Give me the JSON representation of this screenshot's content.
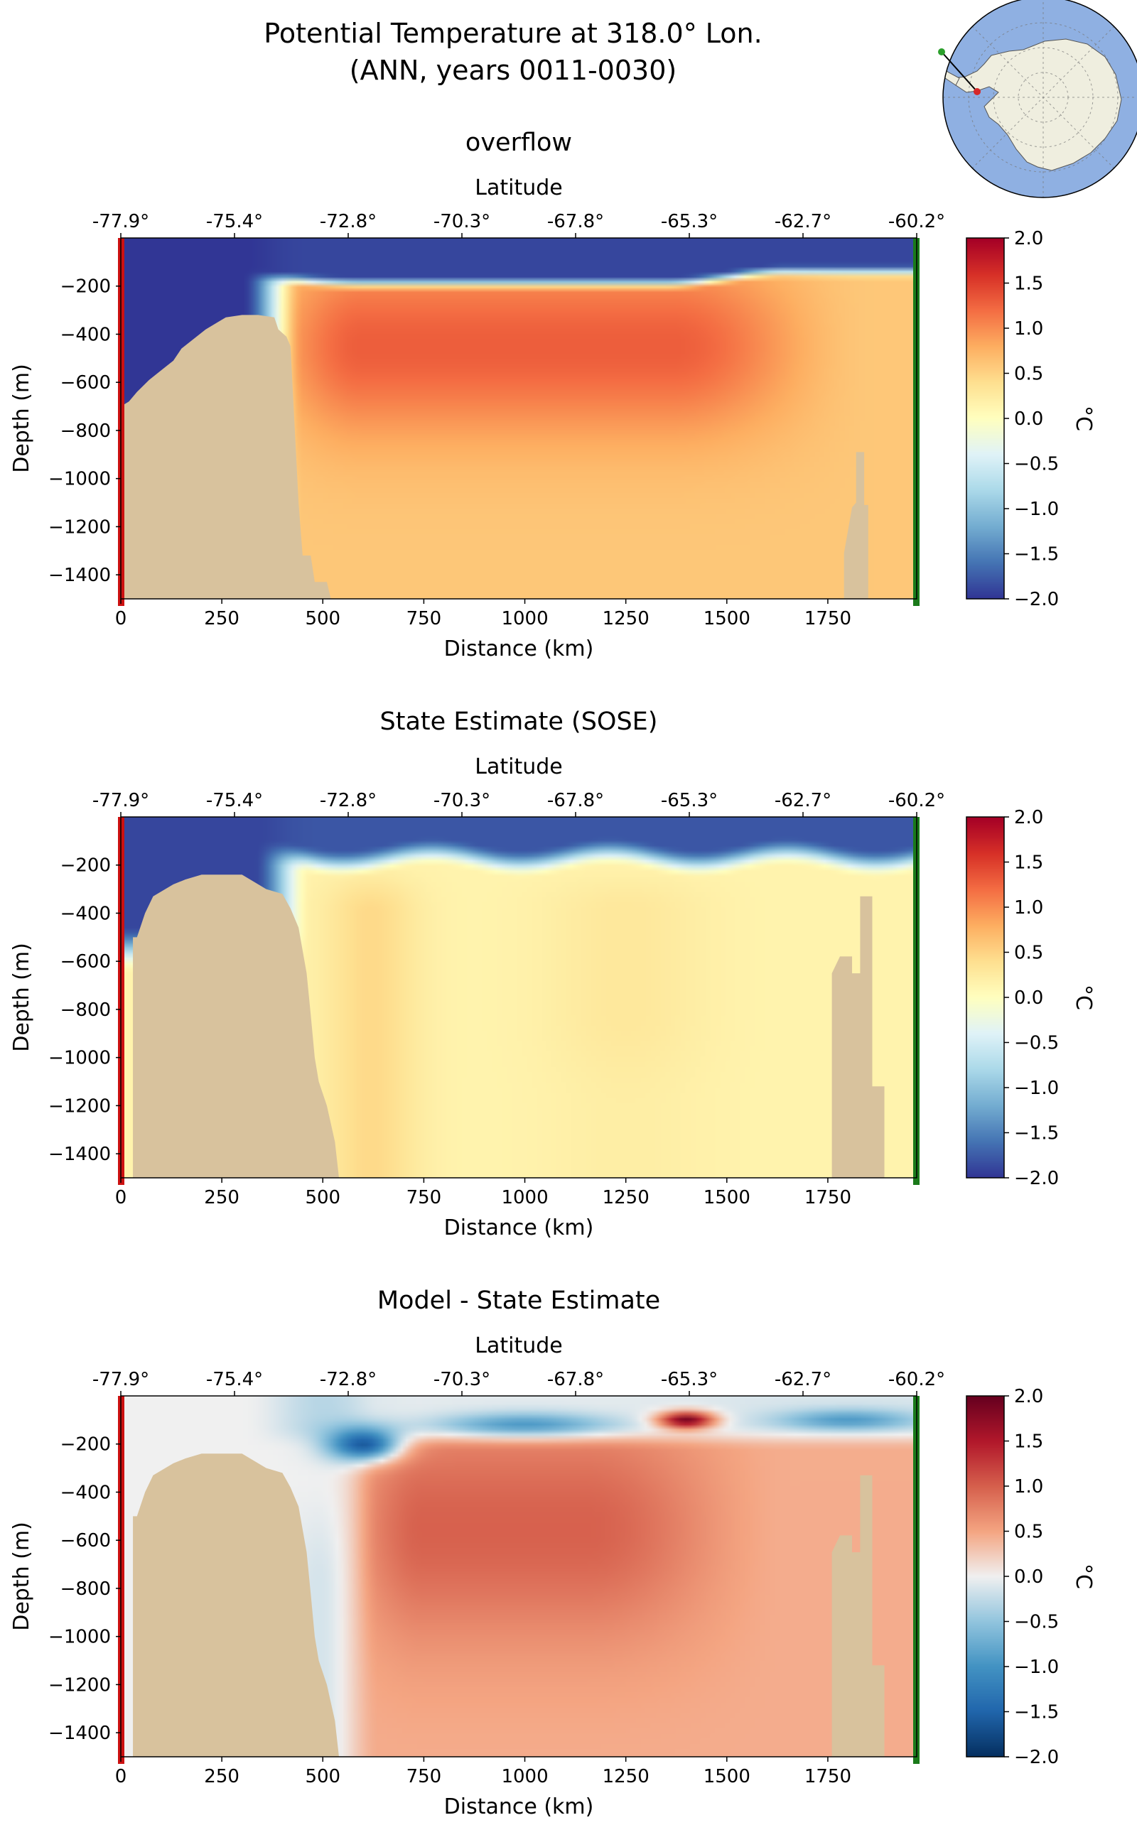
{
  "figure": {
    "title_line1": "Potential Temperature at 318.0° Lon.",
    "title_line2": "(ANN, years 0011-0030)"
  },
  "inset_map": {
    "projection": "south-polar stereographic",
    "ocean_color": "#8fb0e2",
    "land_color": "#efeedf",
    "start_marker_color": "#d62728",
    "end_marker_color": "#2ca02c"
  },
  "colors": {
    "bathymetry": "#d8c29d",
    "start_line": "#cc1111",
    "end_line": "#1a7a1a"
  },
  "chart_data": [
    {
      "type": "heatmap",
      "title": "overflow",
      "xlabel": "Distance (km)",
      "ylabel": "Depth (m)",
      "top_xlabel": "Latitude",
      "xlim": [
        0,
        1970
      ],
      "ylim": [
        -1500,
        0
      ],
      "xticks": [
        0,
        250,
        500,
        750,
        1000,
        1250,
        1500,
        1750
      ],
      "yticks": [
        -200,
        -400,
        -600,
        -800,
        -1000,
        -1200,
        -1400
      ],
      "lat_ticks": [
        "-77.9°",
        "-75.4°",
        "-72.8°",
        "-70.3°",
        "-67.8°",
        "-65.3°",
        "-62.7°",
        "-60.2°"
      ],
      "colorbar": {
        "label": "°C",
        "min": -2.0,
        "max": 2.0,
        "colormap": "RdYlBu_r",
        "ticks": [
          "2.0",
          "1.5",
          "1.0",
          "0.5",
          "0.0",
          "−0.5",
          "−1.0",
          "−1.5",
          "−2.0"
        ]
      },
      "field": {
        "deep_value": 0.6,
        "water_mass": {
          "x": [
            280,
            1560
          ],
          "depth": [
            150,
            750
          ],
          "peak": 1.3
        },
        "surface_layer": {
          "depth_m": [
            0,
            170
          ],
          "value": -1.9
        },
        "shelf_water": {
          "x": [
            0,
            420
          ],
          "value": -2.0
        }
      },
      "bathymetry_depth_m": [
        [
          0,
          700
        ],
        [
          20,
          680
        ],
        [
          40,
          640
        ],
        [
          70,
          590
        ],
        [
          100,
          550
        ],
        [
          130,
          510
        ],
        [
          150,
          460
        ],
        [
          180,
          420
        ],
        [
          210,
          380
        ],
        [
          240,
          350
        ],
        [
          260,
          330
        ],
        [
          300,
          320
        ],
        [
          340,
          320
        ],
        [
          380,
          330
        ],
        [
          390,
          380
        ],
        [
          410,
          410
        ],
        [
          420,
          450
        ],
        [
          440,
          1100
        ],
        [
          450,
          1320
        ],
        [
          470,
          1320
        ],
        [
          480,
          1430
        ],
        [
          510,
          1430
        ],
        [
          520,
          1500
        ],
        [
          1790,
          1500
        ],
        [
          1790,
          1310
        ],
        [
          1810,
          1120
        ],
        [
          1820,
          1100
        ],
        [
          1820,
          890
        ],
        [
          1840,
          890
        ],
        [
          1840,
          1110
        ],
        [
          1850,
          1110
        ],
        [
          1850,
          1500
        ]
      ]
    },
    {
      "type": "heatmap",
      "title": "State Estimate (SOSE)",
      "xlabel": "Distance (km)",
      "ylabel": "Depth (m)",
      "top_xlabel": "Latitude",
      "xlim": [
        0,
        1970
      ],
      "ylim": [
        -1500,
        0
      ],
      "xticks": [
        0,
        250,
        500,
        750,
        1000,
        1250,
        1500,
        1750
      ],
      "yticks": [
        -200,
        -400,
        -600,
        -800,
        -1000,
        -1200,
        -1400
      ],
      "lat_ticks": [
        "-77.9°",
        "-75.4°",
        "-72.8°",
        "-70.3°",
        "-67.8°",
        "-65.3°",
        "-62.7°",
        "-60.2°"
      ],
      "colorbar": {
        "label": "°C",
        "min": -2.0,
        "max": 2.0,
        "colormap": "RdYlBu_r",
        "ticks": [
          "2.0",
          "1.5",
          "1.0",
          "0.5",
          "0.0",
          "−0.5",
          "−1.0",
          "−1.5",
          "−2.0"
        ]
      },
      "field": {
        "deep_value": 0.15,
        "warm_cores": [
          {
            "x": 620,
            "value": 0.45
          },
          {
            "x": 1250,
            "value": 0.3
          }
        ],
        "surface_layer": {
          "depth_m": [
            0,
            150
          ],
          "value": -1.8
        },
        "shelf_water": {
          "x": [
            0,
            430
          ],
          "value": -1.9
        }
      },
      "bathymetry_depth_m": [
        [
          30,
          0
        ],
        [
          30,
          500
        ],
        [
          40,
          500
        ],
        [
          40,
          500
        ],
        [
          60,
          400
        ],
        [
          80,
          330
        ],
        [
          100,
          310
        ],
        [
          130,
          280
        ],
        [
          160,
          260
        ],
        [
          200,
          240
        ],
        [
          300,
          240
        ],
        [
          360,
          300
        ],
        [
          400,
          320
        ],
        [
          420,
          380
        ],
        [
          440,
          460
        ],
        [
          460,
          650
        ],
        [
          470,
          820
        ],
        [
          480,
          1000
        ],
        [
          490,
          1100
        ],
        [
          510,
          1200
        ],
        [
          530,
          1350
        ],
        [
          540,
          1500
        ],
        [
          1760,
          1500
        ],
        [
          1760,
          650
        ],
        [
          1780,
          580
        ],
        [
          1810,
          580
        ],
        [
          1810,
          650
        ],
        [
          1830,
          650
        ],
        [
          1830,
          330
        ],
        [
          1860,
          330
        ],
        [
          1860,
          1120
        ],
        [
          1890,
          1120
        ],
        [
          1890,
          1500
        ]
      ]
    },
    {
      "type": "heatmap",
      "title": "Model - State Estimate",
      "xlabel": "Distance (km)",
      "ylabel": "Depth (m)",
      "top_xlabel": "Latitude",
      "xlim": [
        0,
        1970
      ],
      "ylim": [
        -1500,
        0
      ],
      "xticks": [
        0,
        250,
        500,
        750,
        1000,
        1250,
        1500,
        1750
      ],
      "yticks": [
        -200,
        -400,
        -600,
        -800,
        -1000,
        -1200,
        -1400
      ],
      "lat_ticks": [
        "-77.9°",
        "-75.4°",
        "-72.8°",
        "-70.3°",
        "-67.8°",
        "-65.3°",
        "-62.7°",
        "-60.2°"
      ],
      "colorbar": {
        "label": "°C",
        "min": -2.0,
        "max": 2.0,
        "colormap": "RdBu_r",
        "ticks": [
          "2.0",
          "1.5",
          "1.0",
          "0.5",
          "0.0",
          "−0.5",
          "−1.0",
          "−1.5",
          "−2.0"
        ]
      },
      "field": {
        "deep_value": 0.5,
        "positive_core": {
          "x": [
            650,
            1150
          ],
          "depth": [
            250,
            900
          ],
          "peak": 1.1
        },
        "cold_anomaly": {
          "x": 600,
          "depth": 200,
          "value": -1.6
        },
        "hot_anomaly": {
          "x": 1400,
          "depth": 100,
          "value": 1.9
        }
      },
      "bathymetry_depth_m": [
        [
          30,
          0
        ],
        [
          30,
          500
        ],
        [
          40,
          500
        ],
        [
          40,
          500
        ],
        [
          60,
          400
        ],
        [
          80,
          330
        ],
        [
          100,
          310
        ],
        [
          130,
          280
        ],
        [
          160,
          260
        ],
        [
          200,
          240
        ],
        [
          300,
          240
        ],
        [
          360,
          300
        ],
        [
          400,
          320
        ],
        [
          420,
          380
        ],
        [
          440,
          460
        ],
        [
          460,
          650
        ],
        [
          470,
          820
        ],
        [
          480,
          1000
        ],
        [
          490,
          1100
        ],
        [
          510,
          1200
        ],
        [
          530,
          1350
        ],
        [
          540,
          1500
        ],
        [
          1760,
          1500
        ],
        [
          1760,
          650
        ],
        [
          1780,
          580
        ],
        [
          1810,
          580
        ],
        [
          1810,
          650
        ],
        [
          1830,
          650
        ],
        [
          1830,
          330
        ],
        [
          1860,
          330
        ],
        [
          1860,
          1120
        ],
        [
          1890,
          1120
        ],
        [
          1890,
          1500
        ]
      ]
    }
  ]
}
